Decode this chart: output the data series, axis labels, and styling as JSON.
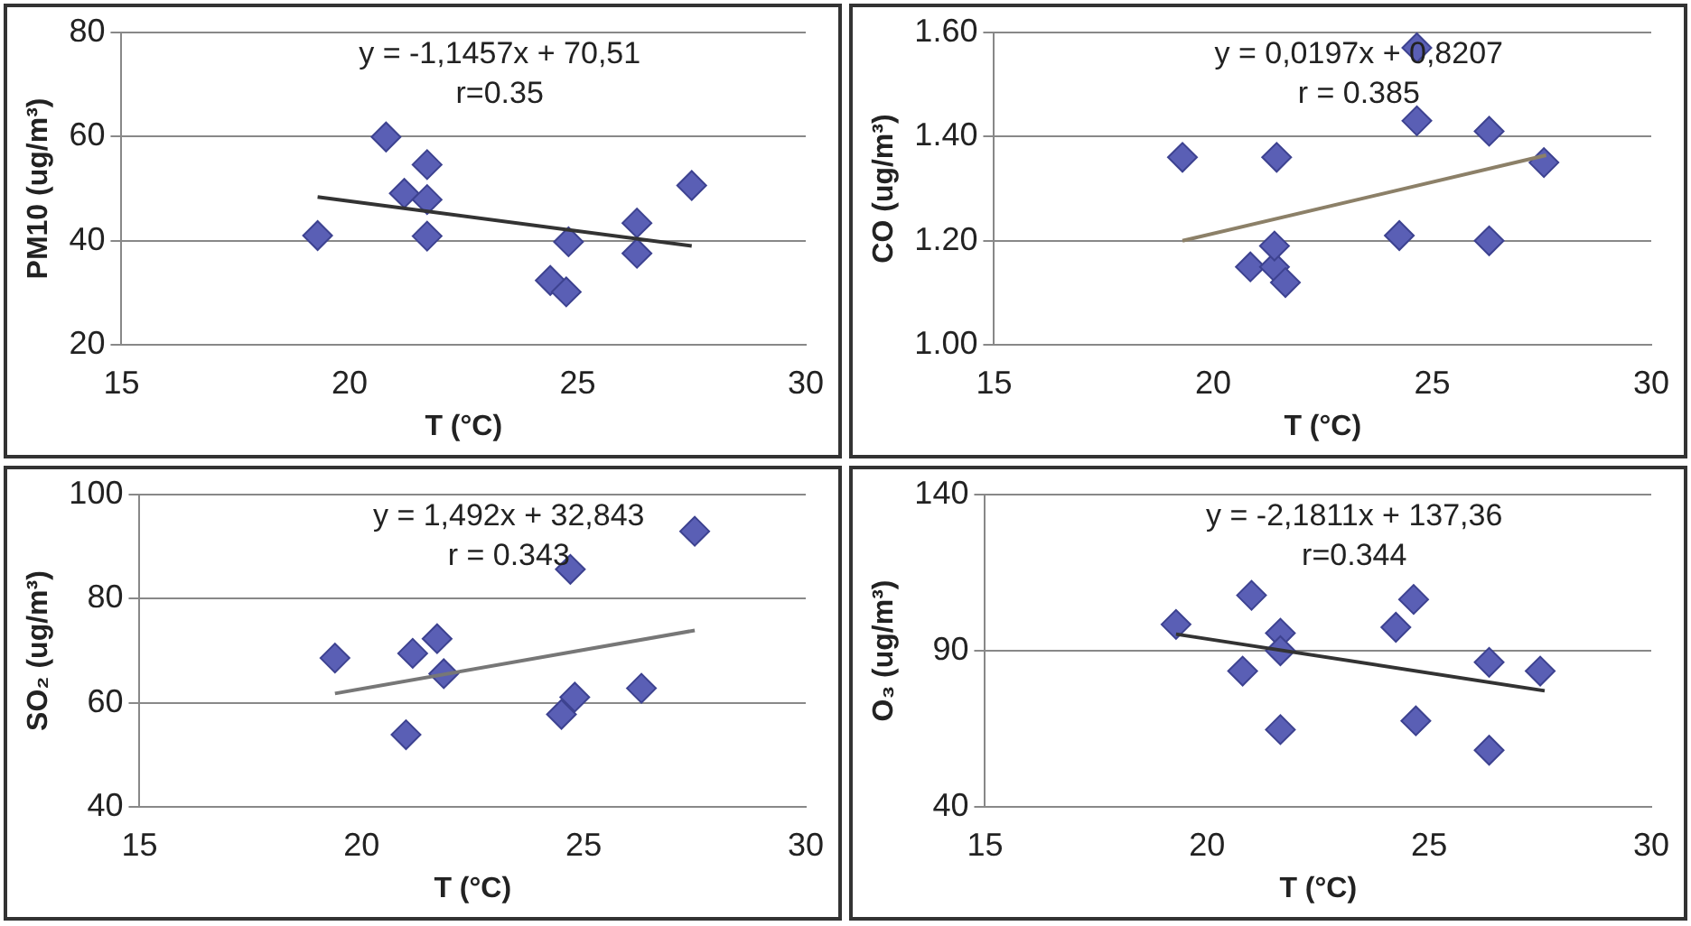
{
  "chart_data": [
    {
      "type": "scatter",
      "xlabel": "T (°C)",
      "ylabel": "PM10 (ug/m³)",
      "xlim": [
        15,
        30
      ],
      "xticks": [
        15,
        20,
        25,
        30
      ],
      "ylim": [
        20,
        80
      ],
      "yticks": [
        20,
        40,
        60,
        80
      ],
      "grid": "y",
      "marker": "diamond",
      "annotations": [
        "y = -1,1457x + 70,51",
        "r=0.35"
      ],
      "series": [
        {
          "type": "scatter",
          "color": "#5a5fb5",
          "x": [
            19.3,
            20.8,
            21.7,
            21.2,
            21.7,
            21.7,
            24.4,
            24.75,
            24.8,
            26.3,
            26.3,
            27.5
          ],
          "values": [
            41,
            59.9,
            54.6,
            49.1,
            47.9,
            40.9,
            32.4,
            30.2,
            39.8,
            43.4,
            37.6,
            50.6
          ]
        },
        {
          "type": "line",
          "color": "#333333",
          "marker": "none",
          "line_style": "solid",
          "x": [
            19.3,
            27.5
          ],
          "values": [
            48.4,
            39.0
          ]
        }
      ]
    },
    {
      "type": "scatter",
      "xlabel": "T (°C)",
      "ylabel": "CO (ug/m³)",
      "xlim": [
        15,
        30
      ],
      "xticks": [
        15,
        20,
        25,
        30
      ],
      "ylim": [
        1.0,
        1.6
      ],
      "yticks": [
        {
          "value": 1.0,
          "label": "1.00"
        },
        {
          "value": 1.2,
          "label": "1.20"
        },
        {
          "value": 1.4,
          "label": "1.40"
        },
        {
          "value": 1.6,
          "label": "1.60"
        }
      ],
      "grid": "y",
      "marker": "diamond",
      "annotations": [
        "y = 0,0197x + 0,8207",
        "r = 0.385"
      ],
      "series": [
        {
          "type": "scatter",
          "color": "#5a5fb5",
          "x": [
            19.3,
            21.45,
            20.85,
            21.4,
            21.4,
            21.65,
            24.25,
            24.65,
            24.65,
            26.3,
            26.3,
            27.55
          ],
          "values": [
            1.36,
            1.36,
            1.15,
            1.15,
            1.19,
            1.12,
            1.21,
            1.43,
            1.57,
            1.41,
            1.2,
            1.35
          ]
        },
        {
          "type": "line",
          "color": "#8c8068",
          "marker": "none",
          "line_style": "solid",
          "x": [
            19.3,
            27.6
          ],
          "values": [
            1.2,
            1.364
          ]
        }
      ]
    },
    {
      "type": "scatter",
      "xlabel": "T (°C)",
      "ylabel": "SO₂ (ug/m³)",
      "xlim": [
        15,
        30
      ],
      "xticks": [
        15,
        20,
        25,
        30
      ],
      "ylim": [
        40,
        100
      ],
      "yticks": [
        40,
        60,
        80,
        100
      ],
      "grid": "y",
      "marker": "diamond",
      "annotations": [
        "y = 1,492x + 32,843",
        "r = 0.343"
      ],
      "series": [
        {
          "type": "scatter",
          "color": "#5a5fb5",
          "x": [
            19.4,
            21.0,
            21.15,
            21.7,
            21.85,
            24.5,
            24.8,
            24.7,
            26.3,
            27.5
          ],
          "values": [
            68.6,
            53.9,
            69.5,
            72.3,
            65.6,
            57.8,
            61.1,
            85.6,
            62.8,
            92.9
          ]
        },
        {
          "type": "line",
          "color": "#777777",
          "marker": "none",
          "line_style": "solid",
          "x": [
            19.4,
            27.5
          ],
          "values": [
            61.8,
            73.9
          ]
        }
      ]
    },
    {
      "type": "scatter",
      "xlabel": "T (°C)",
      "ylabel": "O₃ (ug/m³)",
      "xlim": [
        15,
        30
      ],
      "xticks": [
        15,
        20,
        25,
        30
      ],
      "ylim": [
        40,
        140
      ],
      "yticks": [
        40,
        90,
        140
      ],
      "grid": "y",
      "marker": "diamond",
      "annotations": [
        "y = -2,1811x + 137,36",
        "r=0.344"
      ],
      "series": [
        {
          "type": "scatter",
          "color": "#5a5fb5",
          "x": [
            19.3,
            21.0,
            20.8,
            21.65,
            21.65,
            21.65,
            24.25,
            24.65,
            24.7,
            26.35,
            26.35,
            27.5
          ],
          "values": [
            98.4,
            107.7,
            83.5,
            95.6,
            90,
            64.8,
            97.5,
            106.4,
            67.6,
            86.3,
            58.2,
            83.5
          ]
        },
        {
          "type": "line",
          "color": "#333333",
          "marker": "none",
          "line_style": "solid",
          "x": [
            19.3,
            27.6
          ],
          "values": [
            95.3,
            77.2
          ]
        }
      ]
    }
  ]
}
